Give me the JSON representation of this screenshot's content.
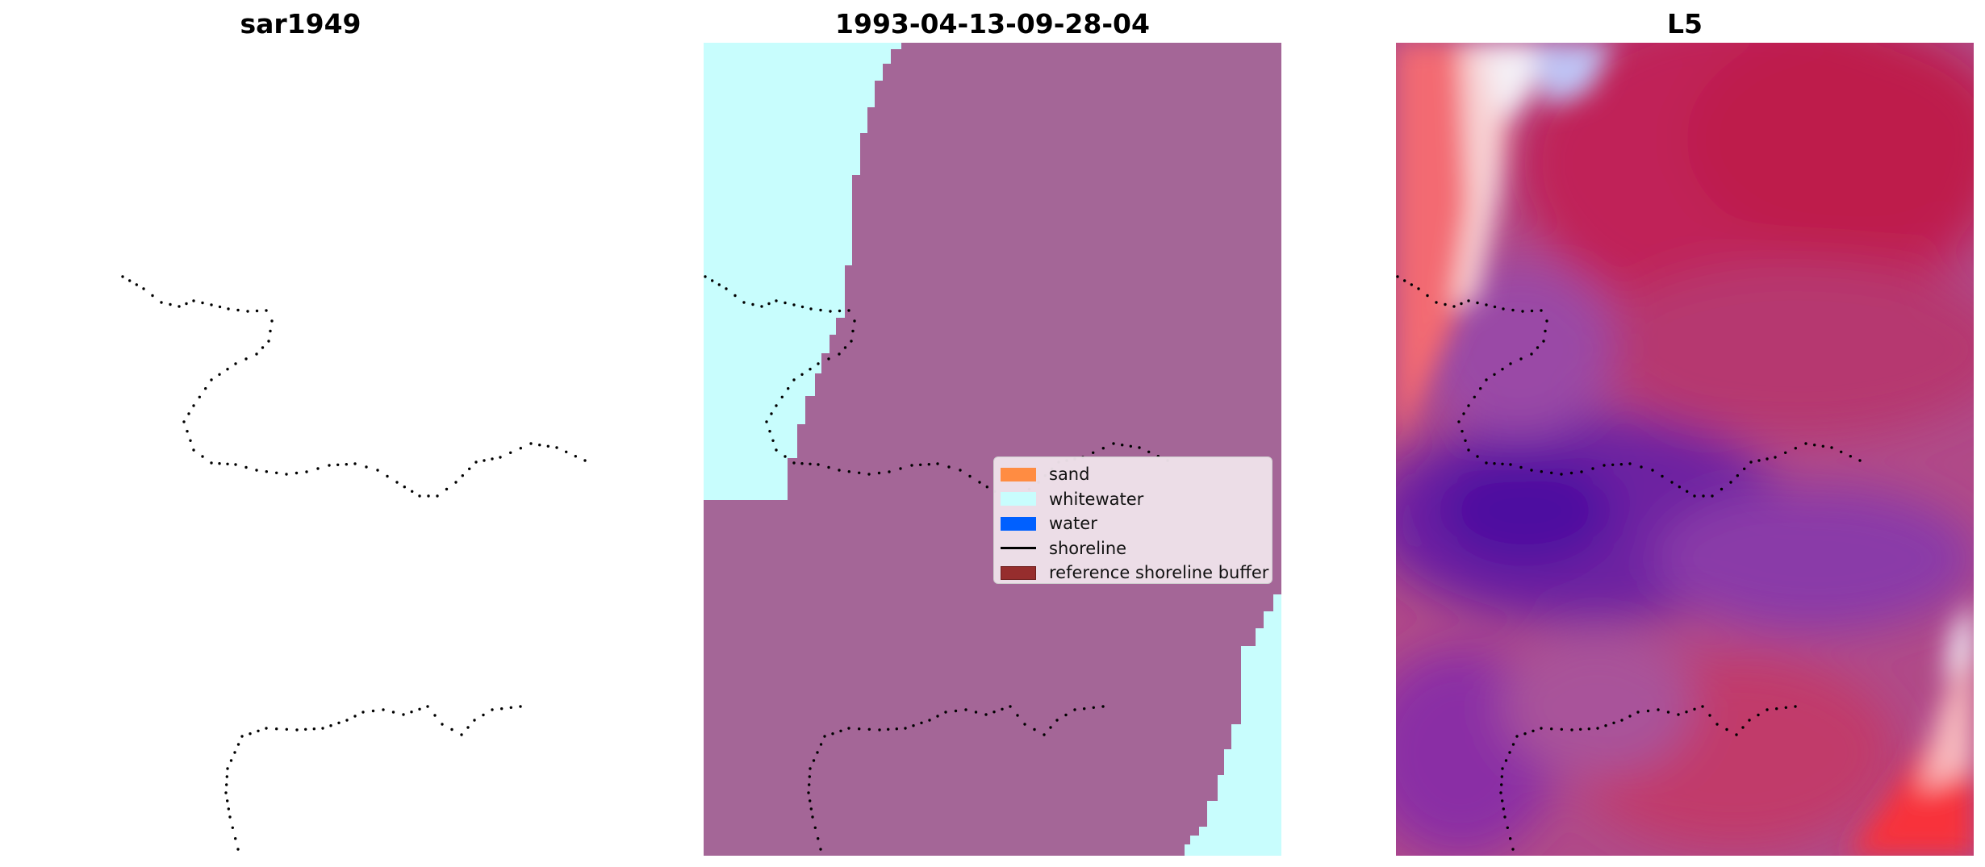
{
  "panels": [
    {
      "title": "sar1949",
      "image": "blank-white-sar-image"
    },
    {
      "title": "1993-04-13-09-28-04",
      "image": "classified-image"
    },
    {
      "title": "L5",
      "image": "red-blue-difference-image"
    }
  ],
  "legend": [
    {
      "label": "sand",
      "color": "#ff8c42",
      "kind": "patch"
    },
    {
      "label": "whitewater",
      "color": "#c8fdfd",
      "kind": "patch"
    },
    {
      "label": "water",
      "color": "#0060ff",
      "kind": "patch"
    },
    {
      "label": "shoreline",
      "color": "#000000",
      "kind": "line"
    },
    {
      "label": "reference shoreline buffer",
      "color": "#962d2d",
      "kind": "patch"
    }
  ],
  "colors": {
    "buffer_overlay": "#a46697",
    "whitewater": "#c8fdfd",
    "shoreline_points": "#000000"
  }
}
